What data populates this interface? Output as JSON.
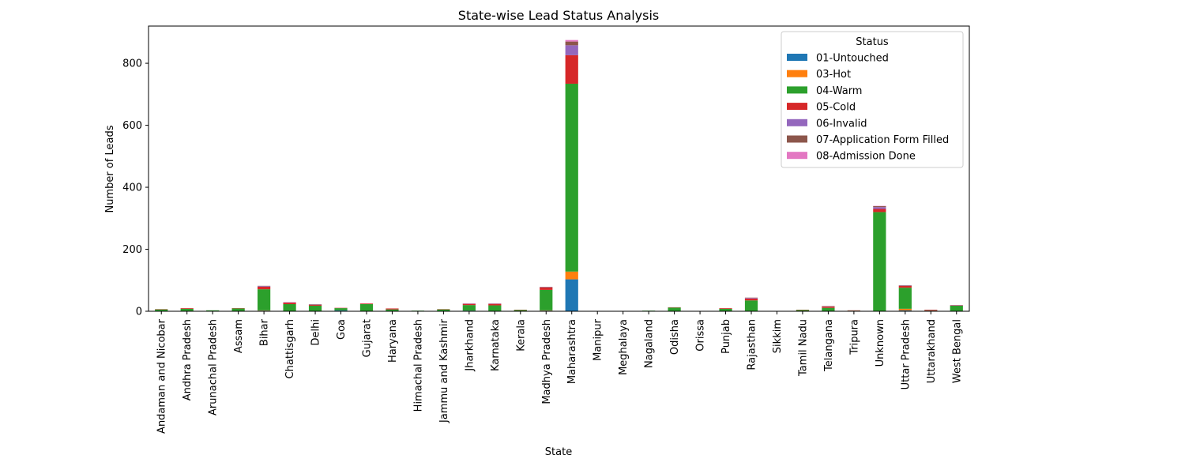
{
  "chart_data": {
    "type": "bar",
    "stacked": true,
    "title": "State-wise Lead Status Analysis",
    "xlabel": "State",
    "ylabel": "Number of Leads",
    "ylim": [
      0,
      920
    ],
    "yticks": [
      0,
      200,
      400,
      600,
      800
    ],
    "grid": false,
    "legend": {
      "title": "Status",
      "placement": "top-right"
    },
    "categories": [
      "Andaman and Nicobar",
      "Andhra Pradesh",
      "Arunachal Pradesh",
      "Assam",
      "Bihar",
      "Chattisgarh",
      "Delhi",
      "Goa",
      "Gujarat",
      "Haryana",
      "Himachal Pradesh",
      "Jammu and Kashmir",
      "Jharkhand",
      "Karnataka",
      "Kerala",
      "Madhya Pradesh",
      "Maharashtra",
      "Manipur",
      "Meghalaya",
      "Nagaland",
      "Odisha",
      "Orissa",
      "Punjab",
      "Rajasthan",
      "Sikkim",
      "Tamil Nadu",
      "Telangana",
      "Tripura",
      "Unknown",
      "Uttar Pradesh",
      "Uttarakhand",
      "West Bengal"
    ],
    "series": [
      {
        "name": "01-Untouched",
        "color": "#1f77b4",
        "values": [
          0,
          0,
          0,
          0,
          2,
          0,
          0,
          3,
          0,
          0,
          0,
          0,
          2,
          0,
          0,
          2,
          103,
          0,
          0,
          0,
          0,
          0,
          0,
          0,
          0,
          0,
          0,
          0,
          0,
          3,
          0,
          0
        ]
      },
      {
        "name": "03-Hot",
        "color": "#ff7f0e",
        "values": [
          0,
          1,
          0,
          0,
          1,
          1,
          0,
          0,
          0,
          0,
          0,
          0,
          0,
          0,
          0,
          1,
          25,
          0,
          0,
          0,
          0,
          0,
          0,
          0,
          0,
          0,
          0,
          0,
          0,
          5,
          0,
          0
        ]
      },
      {
        "name": "04-Warm",
        "color": "#2ca02c",
        "values": [
          6,
          7,
          3,
          9,
          68,
          22,
          18,
          7,
          23,
          6,
          2,
          6,
          18,
          19,
          4,
          66,
          606,
          0,
          0,
          2,
          12,
          0,
          8,
          35,
          0,
          4,
          11,
          2,
          320,
          68,
          2,
          18
        ]
      },
      {
        "name": "05-Cold",
        "color": "#d62728",
        "values": [
          1,
          2,
          0,
          1,
          8,
          5,
          3,
          1,
          2,
          3,
          0,
          1,
          4,
          5,
          1,
          8,
          92,
          0,
          0,
          0,
          1,
          0,
          2,
          6,
          0,
          1,
          4,
          1,
          10,
          6,
          2,
          1
        ]
      },
      {
        "name": "06-Invalid",
        "color": "#9467bd",
        "values": [
          0,
          0,
          0,
          0,
          2,
          1,
          1,
          0,
          0,
          0,
          0,
          0,
          1,
          1,
          0,
          1,
          32,
          0,
          0,
          0,
          0,
          0,
          0,
          2,
          0,
          0,
          1,
          0,
          6,
          1,
          0,
          1
        ]
      },
      {
        "name": "07-Application Form Filled",
        "color": "#8c564b",
        "values": [
          0,
          0,
          0,
          0,
          1,
          0,
          1,
          0,
          0,
          0,
          0,
          0,
          0,
          0,
          0,
          1,
          12,
          0,
          0,
          0,
          0,
          0,
          0,
          1,
          0,
          0,
          1,
          0,
          3,
          1,
          1,
          0
        ]
      },
      {
        "name": "08-Admission Done",
        "color": "#e377c2",
        "values": [
          0,
          0,
          0,
          0,
          0,
          0,
          0,
          0,
          0,
          0,
          0,
          0,
          0,
          0,
          0,
          0,
          5,
          0,
          0,
          0,
          0,
          0,
          0,
          0,
          0,
          0,
          0,
          0,
          1,
          0,
          0,
          0
        ]
      }
    ]
  }
}
